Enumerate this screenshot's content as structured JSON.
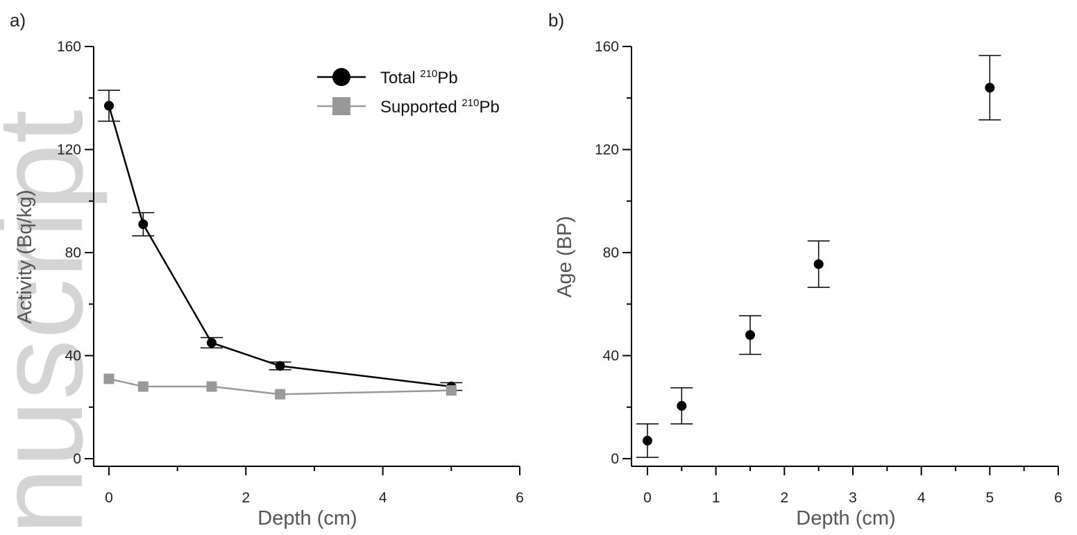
{
  "watermark": "nuscript",
  "chart_data": [
    {
      "panel_label": "a)",
      "type": "line",
      "xlabel": "Depth (cm)",
      "ylabel": "Activity (Bq/kg)",
      "xlim": [
        0,
        6
      ],
      "ylim": [
        0,
        160
      ],
      "xticks": [
        0,
        2,
        4,
        6
      ],
      "yticks": [
        0,
        40,
        80,
        120,
        160
      ],
      "legend_position": "top-right",
      "series": [
        {
          "name_main": "Total ",
          "name_sup": "210",
          "name_tail": "Pb",
          "color": "#000000",
          "marker": "circle",
          "x": [
            0,
            0.5,
            1.5,
            2.5,
            5
          ],
          "y": [
            137,
            91,
            45,
            36,
            28
          ],
          "err": [
            6,
            4.5,
            2,
            1.5,
            1.5
          ]
        },
        {
          "name_main": "Supported ",
          "name_sup": "210",
          "name_tail": "Pb",
          "color": "#999999",
          "marker": "square",
          "x": [
            0,
            0.5,
            1.5,
            2.5,
            5
          ],
          "y": [
            31,
            28,
            28,
            25,
            26.5
          ]
        }
      ]
    },
    {
      "panel_label": "b)",
      "type": "scatter",
      "xlabel": "Depth (cm)",
      "ylabel": "Age (BP)",
      "xlim": [
        0,
        6
      ],
      "ylim": [
        0,
        160
      ],
      "xticks": [
        0,
        1,
        2,
        3,
        4,
        5,
        6
      ],
      "yticks": [
        0,
        40,
        80,
        120,
        160
      ],
      "series": [
        {
          "color": "#000000",
          "marker": "circle",
          "x": [
            0,
            0.5,
            1.5,
            2.5,
            5
          ],
          "y": [
            7,
            20.5,
            48,
            75.5,
            144
          ],
          "err": [
            6.5,
            7,
            7.5,
            9,
            12.5
          ]
        }
      ]
    }
  ]
}
